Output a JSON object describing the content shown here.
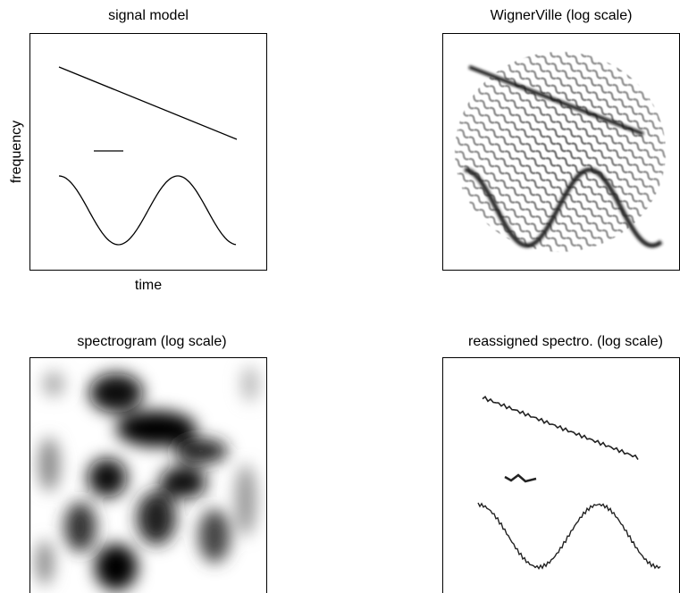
{
  "panels": [
    {
      "title": "signal model",
      "xlabel": "time",
      "ylabel": "frequency"
    },
    {
      "title": "WignerVille  (log scale)"
    },
    {
      "title": "spectrogram  (log scale)"
    },
    {
      "title": "reassigned spectro. (log scale)"
    }
  ]
}
